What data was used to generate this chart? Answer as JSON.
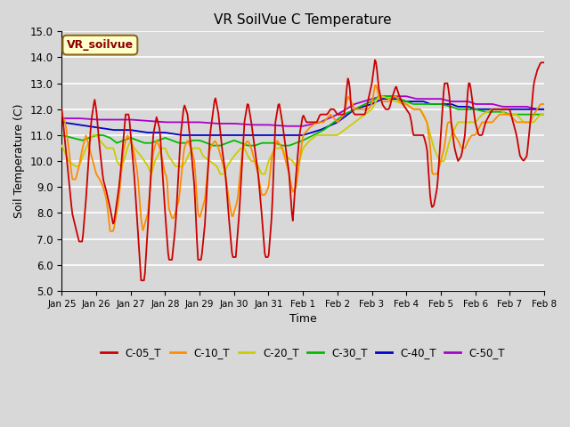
{
  "title": "VR SoilVue C Temperature",
  "xlabel": "Time",
  "ylabel": "Soil Temperature (C)",
  "ylim": [
    5.0,
    15.0
  ],
  "bg_color": "#d8d8d8",
  "plot_bg_color": "#d8d8d8",
  "grid_color": "#ffffff",
  "legend_label": "VR_soilvue",
  "series_colors": {
    "C-05_T": "#cc0000",
    "C-10_T": "#ff8c00",
    "C-20_T": "#cccc00",
    "C-30_T": "#00bb00",
    "C-40_T": "#0000cc",
    "C-50_T": "#aa00cc"
  },
  "xtick_labels": [
    "Jan 25",
    "Jan 26",
    "Jan 27",
    "Jan 28",
    "Jan 29",
    "Jan 30",
    "Jan 31",
    "Feb 1",
    "Feb 2",
    "Feb 3",
    "Feb 4",
    "Feb 5",
    "Feb 6",
    "Feb 7",
    "Feb 8"
  ]
}
